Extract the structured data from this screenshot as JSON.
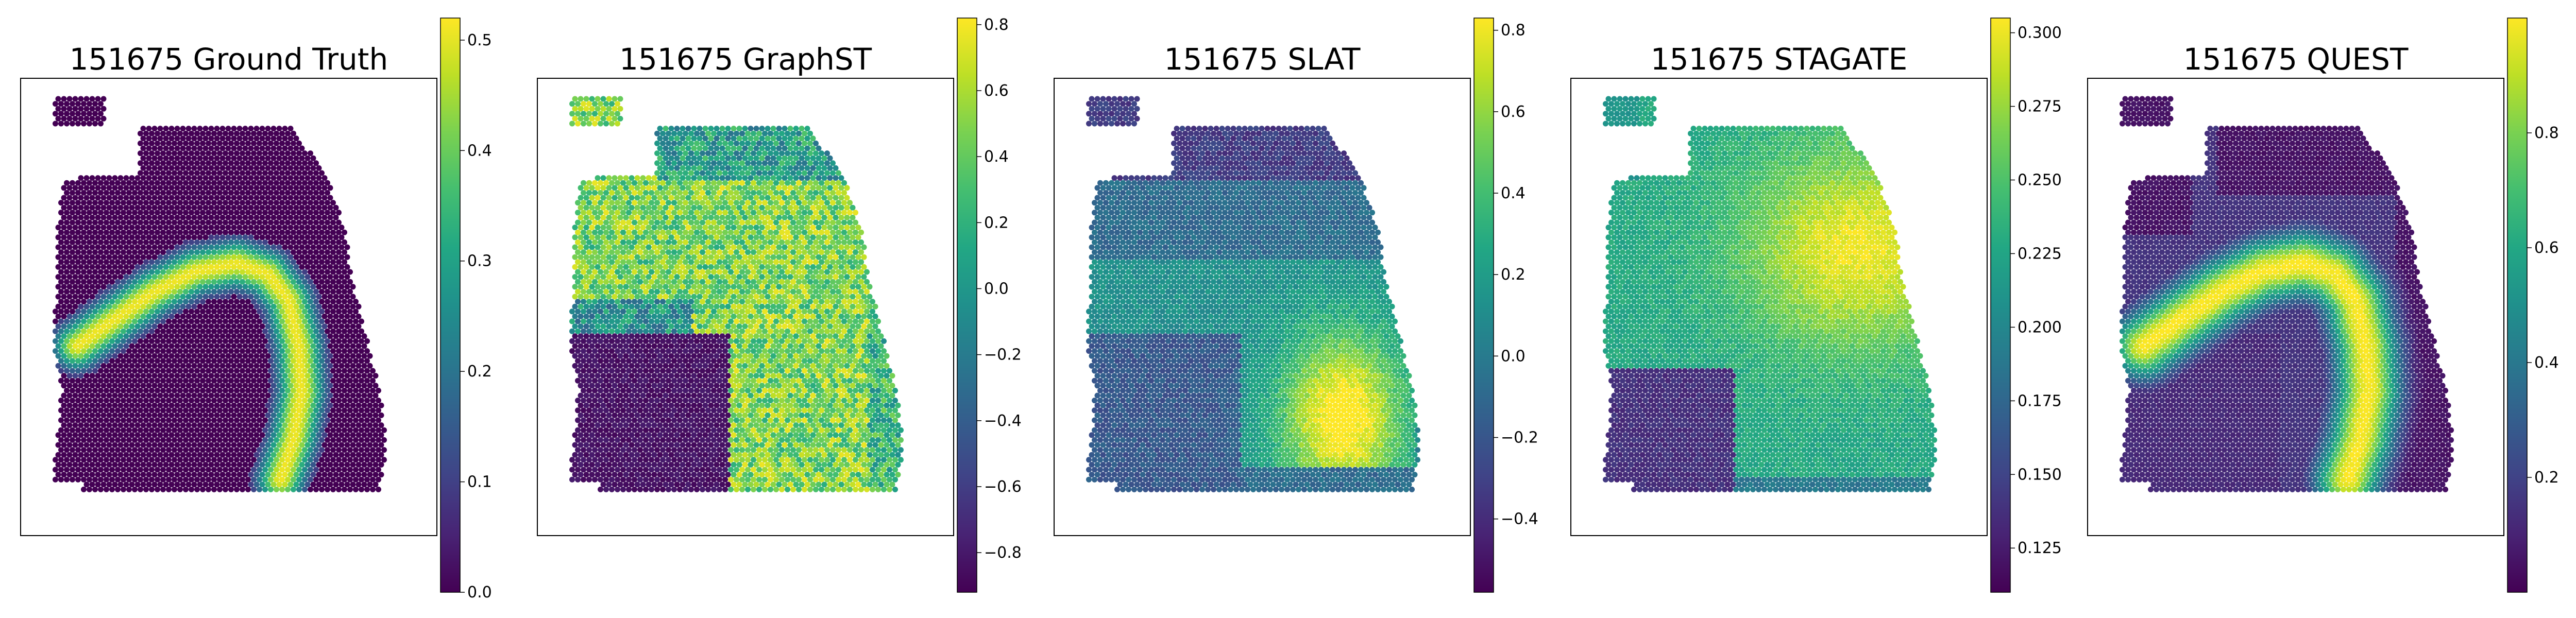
{
  "chart_data": [
    {
      "type": "heatmap",
      "title": "151675 Ground Truth",
      "colormap": "viridis",
      "colorbar": {
        "min": 0.0,
        "max": 0.52,
        "ticks": [
          0.0,
          0.1,
          0.2,
          0.3,
          0.4,
          0.5
        ],
        "tick_labels": [
          "0.0",
          "0.1",
          "0.2",
          "0.3",
          "0.4",
          "0.5"
        ]
      },
      "pattern": "ground_truth_band"
    },
    {
      "type": "heatmap",
      "title": "151675 GraphST",
      "colormap": "viridis",
      "colorbar": {
        "min": -0.92,
        "max": 0.82,
        "ticks": [
          -0.8,
          -0.6,
          -0.4,
          -0.2,
          0.0,
          0.2,
          0.4,
          0.6,
          0.8
        ],
        "tick_labels": [
          "−0.8",
          "−0.6",
          "−0.4",
          "−0.2",
          "0.0",
          "0.2",
          "0.4",
          "0.6",
          "0.8"
        ]
      },
      "pattern": "graphst_noisy"
    },
    {
      "type": "heatmap",
      "title": "151675 SLAT",
      "colormap": "viridis",
      "colorbar": {
        "min": -0.58,
        "max": 0.83,
        "ticks": [
          -0.4,
          -0.2,
          0.0,
          0.2,
          0.4,
          0.6,
          0.8
        ],
        "tick_labels": [
          "−0.4",
          "−0.2",
          "0.0",
          "0.2",
          "0.4",
          "0.6",
          "0.8"
        ]
      },
      "pattern": "slat_lower_right"
    },
    {
      "type": "heatmap",
      "title": "151675 STAGATE",
      "colormap": "viridis",
      "colorbar": {
        "min": 0.11,
        "max": 0.305,
        "ticks": [
          0.125,
          0.15,
          0.175,
          0.2,
          0.225,
          0.25,
          0.275,
          0.3
        ],
        "tick_labels": [
          "0.125",
          "0.150",
          "0.175",
          "0.200",
          "0.225",
          "0.250",
          "0.275",
          "0.300"
        ]
      },
      "pattern": "stagate_smooth"
    },
    {
      "type": "heatmap",
      "title": "151675 QUEST",
      "colormap": "viridis",
      "colorbar": {
        "min": 0.0,
        "max": 1.0,
        "ticks": [
          0.2,
          0.4,
          0.6,
          0.8
        ],
        "tick_labels": [
          "0.2",
          "0.4",
          "0.6",
          "0.8"
        ]
      },
      "pattern": "quest_band"
    }
  ]
}
